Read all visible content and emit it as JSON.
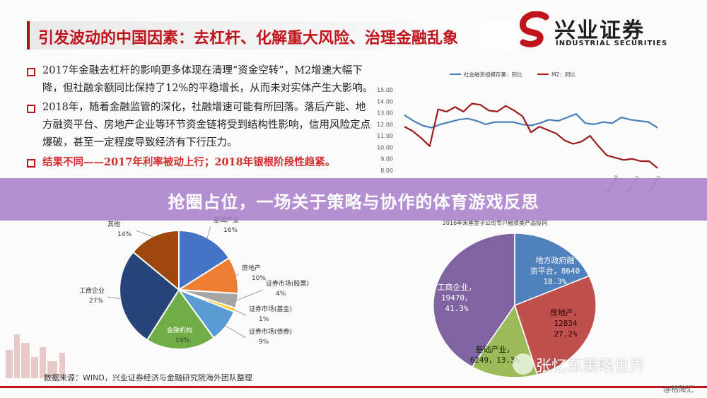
{
  "slide_title": "引发波动的中国因素：去杠杆、化解重大风险、治理金融乱象",
  "logo": {
    "cn": "兴业证券",
    "en": "INDUSTRIAL SECURITIES",
    "icon": "s-swirl-logo-icon",
    "color": "#c0141c"
  },
  "bullets": [
    {
      "text": "2017年金融去杠杆的影响更多体现在清理“资金空转”，M2增速大幅下降，但社融余额同比保持了12%的平稳增长，从而未对实体产生大影响。"
    },
    {
      "text": "2018年，随着金融监管的深化，社融增速可能有所回落。落后产能、地方融资平台、房地产企业等环节资金链将受到结构性影响，信用风险定点爆破，甚至一定程度导致经济有下行压力。"
    },
    {
      "text": "结果不同——2017年利率被动上行；2018年银根阶段性趋紧。"
    }
  ],
  "banner_title": "抢圈占位，一场关于策略与协作的体育游戏反思",
  "source_note": "数据来源：WIND，兴业证券经济与金融研究院海外团队整理",
  "watermark": "张忆东策略世界",
  "corner_mark": "@格隆汇",
  "chart_data": [
    {
      "type": "line",
      "series": [
        {
          "name": "社会融资规模存量：同比",
          "color": "#4a7ebb",
          "values": [
            12.8,
            12.3,
            11.9,
            11.7,
            12.0,
            12.2,
            12.4,
            12.5,
            12.3,
            12.0,
            12.2,
            12.2,
            12.2,
            12.0,
            11.9,
            12.1,
            12.4,
            12.3,
            12.6,
            12.9,
            12.1,
            12.0,
            12.2,
            12.1,
            12.6,
            12.4,
            12.3,
            12.2,
            11.7
          ]
        },
        {
          "name": "M2：同比",
          "color": "#9b1b1b",
          "values": [
            11.8,
            11.4,
            10.8,
            10.1,
            13.3,
            13.1,
            13.5,
            13.1,
            13.8,
            13.7,
            13.2,
            13.1,
            13.6,
            13.2,
            12.7,
            11.3,
            11.8,
            11.5,
            11.2,
            10.6,
            10.3,
            10.5,
            11.0,
            10.1,
            9.3,
            9.1,
            8.9,
            9.0,
            8.8,
            8.8,
            8.2
          ]
        }
      ],
      "yticks": [
        "15.00",
        "14.00",
        "13.00",
        "12.00",
        "11.00",
        "10.00",
        "9.00",
        "8.00"
      ],
      "ylim": [
        8,
        15
      ],
      "xticks": [
        "2017-09",
        "2017-11",
        "2018-01"
      ]
    },
    {
      "type": "pie",
      "slices": [
        {
          "label": "基础产业",
          "pct": "16%",
          "value": 16,
          "color": "#4472c4"
        },
        {
          "label": "房地产",
          "pct": "10%",
          "value": 10,
          "color": "#ed7d31"
        },
        {
          "label": "证券市场(股票)",
          "pct": "4%",
          "value": 4,
          "color": "#a5a5a5"
        },
        {
          "label": "证券市场(基金)",
          "pct": "1%",
          "value": 1,
          "color": "#ffc000"
        },
        {
          "label": "证券市场(债券)",
          "pct": "9%",
          "value": 9,
          "color": "#5b9bd5"
        },
        {
          "label": "金融机构",
          "pct": "19%",
          "value": 19,
          "color": "#70ad47"
        },
        {
          "label": "工商企业",
          "pct": "27%",
          "value": 27,
          "color": "#264478"
        },
        {
          "label": "其他",
          "pct": "14%",
          "value": 14,
          "color": "#9e480e"
        }
      ]
    },
    {
      "type": "pie",
      "title": "2016年末基金子公司专户融资类产品投向",
      "slices": [
        {
          "label": "地方政府融资平台",
          "amount": "8640",
          "pct": "18.3%",
          "value": 8640,
          "color": "#4f81bd"
        },
        {
          "label": "房地产",
          "amount": "12834",
          "pct": "27.2%",
          "value": 12834,
          "color": "#c0504d"
        },
        {
          "label": "基础产业",
          "amount": "6249",
          "pct": "13.3%",
          "value": 6249,
          "color": "#9bbb59"
        },
        {
          "label": "工商企业",
          "amount": "19470",
          "pct": "41.3%",
          "value": 19470,
          "color": "#8064a2"
        }
      ]
    }
  ]
}
